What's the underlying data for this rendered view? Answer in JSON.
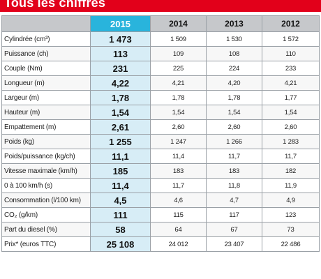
{
  "title": "Tous les chiffres",
  "colors": {
    "title_bg": "#e2001a",
    "header_bg": "#c6c8cb",
    "highlight_header": "#29b4dc",
    "highlight_cell": "#d7edf6"
  },
  "table": {
    "columns": [
      "2015",
      "2014",
      "2013",
      "2012"
    ],
    "rows": [
      {
        "label": "Cylindrée (cm³)",
        "values": [
          "1 473",
          "1 509",
          "1 530",
          "1 572"
        ]
      },
      {
        "label": "Puissance (ch)",
        "values": [
          "113",
          "109",
          "108",
          "110"
        ]
      },
      {
        "label": "Couple (Nm)",
        "values": [
          "231",
          "225",
          "224",
          "233"
        ]
      },
      {
        "label": "Longueur (m)",
        "values": [
          "4,22",
          "4,21",
          "4,20",
          "4,21"
        ]
      },
      {
        "label": "Largeur (m)",
        "values": [
          "1,78",
          "1,78",
          "1,78",
          "1,77"
        ]
      },
      {
        "label": "Hauteur (m)",
        "values": [
          "1,54",
          "1,54",
          "1,54",
          "1,54"
        ]
      },
      {
        "label": "Empattement (m)",
        "values": [
          "2,61",
          "2,60",
          "2,60",
          "2,60"
        ]
      },
      {
        "label": "Poids (kg)",
        "values": [
          "1 255",
          "1 247",
          "1 266",
          "1 283"
        ]
      },
      {
        "label": "Poids/puissance (kg/ch)",
        "values": [
          "11,1",
          "11,4",
          "11,7",
          "11,7"
        ]
      },
      {
        "label": "Vitesse maximale (km/h)",
        "values": [
          "185",
          "183",
          "183",
          "182"
        ]
      },
      {
        "label": "0 à 100 km/h (s)",
        "values": [
          "11,4",
          "11,7",
          "11,8",
          "11,9"
        ]
      },
      {
        "label": "Consommation (l/100 km)",
        "values": [
          "4,5",
          "4,6",
          "4,7",
          "4,9"
        ]
      },
      {
        "label": "CO₂ (g/km)",
        "values": [
          "111",
          "115",
          "117",
          "123"
        ]
      },
      {
        "label": "Part du diesel (%)",
        "values": [
          "58",
          "64",
          "67",
          "73"
        ]
      },
      {
        "label": "Prix* (euros TTC)",
        "values": [
          "25 108",
          "24 012",
          "23 407",
          "22 486"
        ]
      }
    ]
  }
}
